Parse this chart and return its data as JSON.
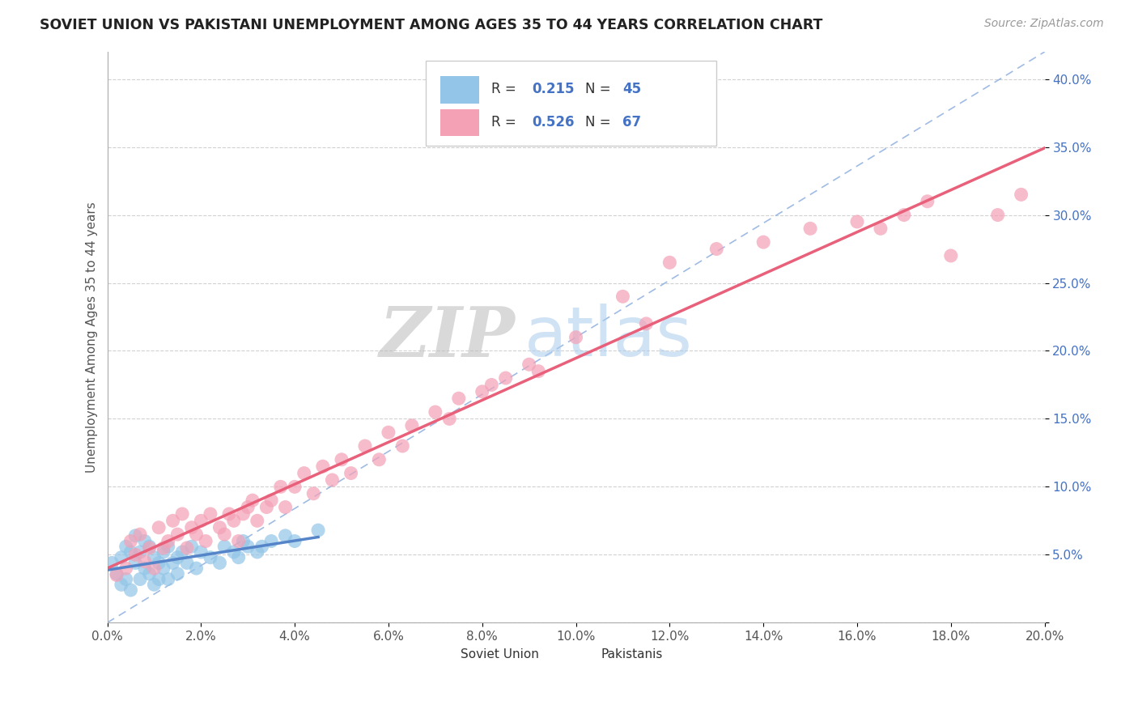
{
  "title": "SOVIET UNION VS PAKISTANI UNEMPLOYMENT AMONG AGES 35 TO 44 YEARS CORRELATION CHART",
  "source": "Source: ZipAtlas.com",
  "ylabel": "Unemployment Among Ages 35 to 44 years",
  "xlim": [
    0.0,
    0.2
  ],
  "ylim": [
    0.0,
    0.42
  ],
  "soviet_color": "#92C5E8",
  "pakistani_color": "#F4A0B5",
  "soviet_line_color": "#5585C8",
  "pakistani_line_color": "#E8607A",
  "diag_line_color": "#88AADD",
  "R_soviet": 0.215,
  "N_soviet": 45,
  "R_pakistani": 0.526,
  "N_pakistani": 67,
  "legend_label_soviet": "Soviet Union",
  "legend_label_pakistani": "Pakistanis",
  "soviet_x": [
    0.001,
    0.002,
    0.003,
    0.003,
    0.004,
    0.004,
    0.005,
    0.005,
    0.006,
    0.006,
    0.007,
    0.007,
    0.008,
    0.008,
    0.009,
    0.009,
    0.01,
    0.01,
    0.011,
    0.011,
    0.012,
    0.012,
    0.013,
    0.013,
    0.014,
    0.015,
    0.015,
    0.016,
    0.017,
    0.018,
    0.019,
    0.02,
    0.022,
    0.024,
    0.025,
    0.027,
    0.028,
    0.029,
    0.03,
    0.032,
    0.033,
    0.035,
    0.038,
    0.04,
    0.045
  ],
  "soviet_y": [
    0.055,
    0.045,
    0.06,
    0.035,
    0.07,
    0.04,
    0.065,
    0.03,
    0.055,
    0.08,
    0.04,
    0.065,
    0.05,
    0.075,
    0.045,
    0.07,
    0.06,
    0.035,
    0.055,
    0.04,
    0.065,
    0.05,
    0.07,
    0.04,
    0.055,
    0.06,
    0.045,
    0.065,
    0.055,
    0.07,
    0.05,
    0.065,
    0.06,
    0.055,
    0.07,
    0.065,
    0.06,
    0.075,
    0.07,
    0.065,
    0.07,
    0.075,
    0.08,
    0.075,
    0.085
  ],
  "pakistani_x": [
    0.002,
    0.004,
    0.005,
    0.006,
    0.007,
    0.008,
    0.009,
    0.01,
    0.011,
    0.012,
    0.013,
    0.014,
    0.015,
    0.016,
    0.017,
    0.018,
    0.019,
    0.02,
    0.021,
    0.022,
    0.024,
    0.025,
    0.026,
    0.027,
    0.028,
    0.029,
    0.03,
    0.031,
    0.032,
    0.034,
    0.035,
    0.037,
    0.038,
    0.04,
    0.042,
    0.044,
    0.046,
    0.048,
    0.05,
    0.052,
    0.055,
    0.058,
    0.06,
    0.063,
    0.065,
    0.07,
    0.073,
    0.075,
    0.08,
    0.082,
    0.085,
    0.09,
    0.092,
    0.1,
    0.11,
    0.115,
    0.12,
    0.13,
    0.14,
    0.15,
    0.16,
    0.165,
    0.17,
    0.175,
    0.18,
    0.19,
    0.195
  ],
  "pakistani_y": [
    0.035,
    0.04,
    0.06,
    0.05,
    0.065,
    0.045,
    0.055,
    0.04,
    0.07,
    0.055,
    0.06,
    0.075,
    0.065,
    0.08,
    0.055,
    0.07,
    0.065,
    0.075,
    0.06,
    0.08,
    0.07,
    0.065,
    0.08,
    0.075,
    0.06,
    0.08,
    0.085,
    0.09,
    0.075,
    0.085,
    0.09,
    0.1,
    0.085,
    0.1,
    0.11,
    0.095,
    0.115,
    0.105,
    0.12,
    0.11,
    0.13,
    0.12,
    0.14,
    0.13,
    0.145,
    0.155,
    0.15,
    0.165,
    0.17,
    0.175,
    0.18,
    0.19,
    0.185,
    0.21,
    0.24,
    0.22,
    0.265,
    0.275,
    0.28,
    0.29,
    0.295,
    0.29,
    0.3,
    0.31,
    0.27,
    0.3,
    0.315
  ]
}
